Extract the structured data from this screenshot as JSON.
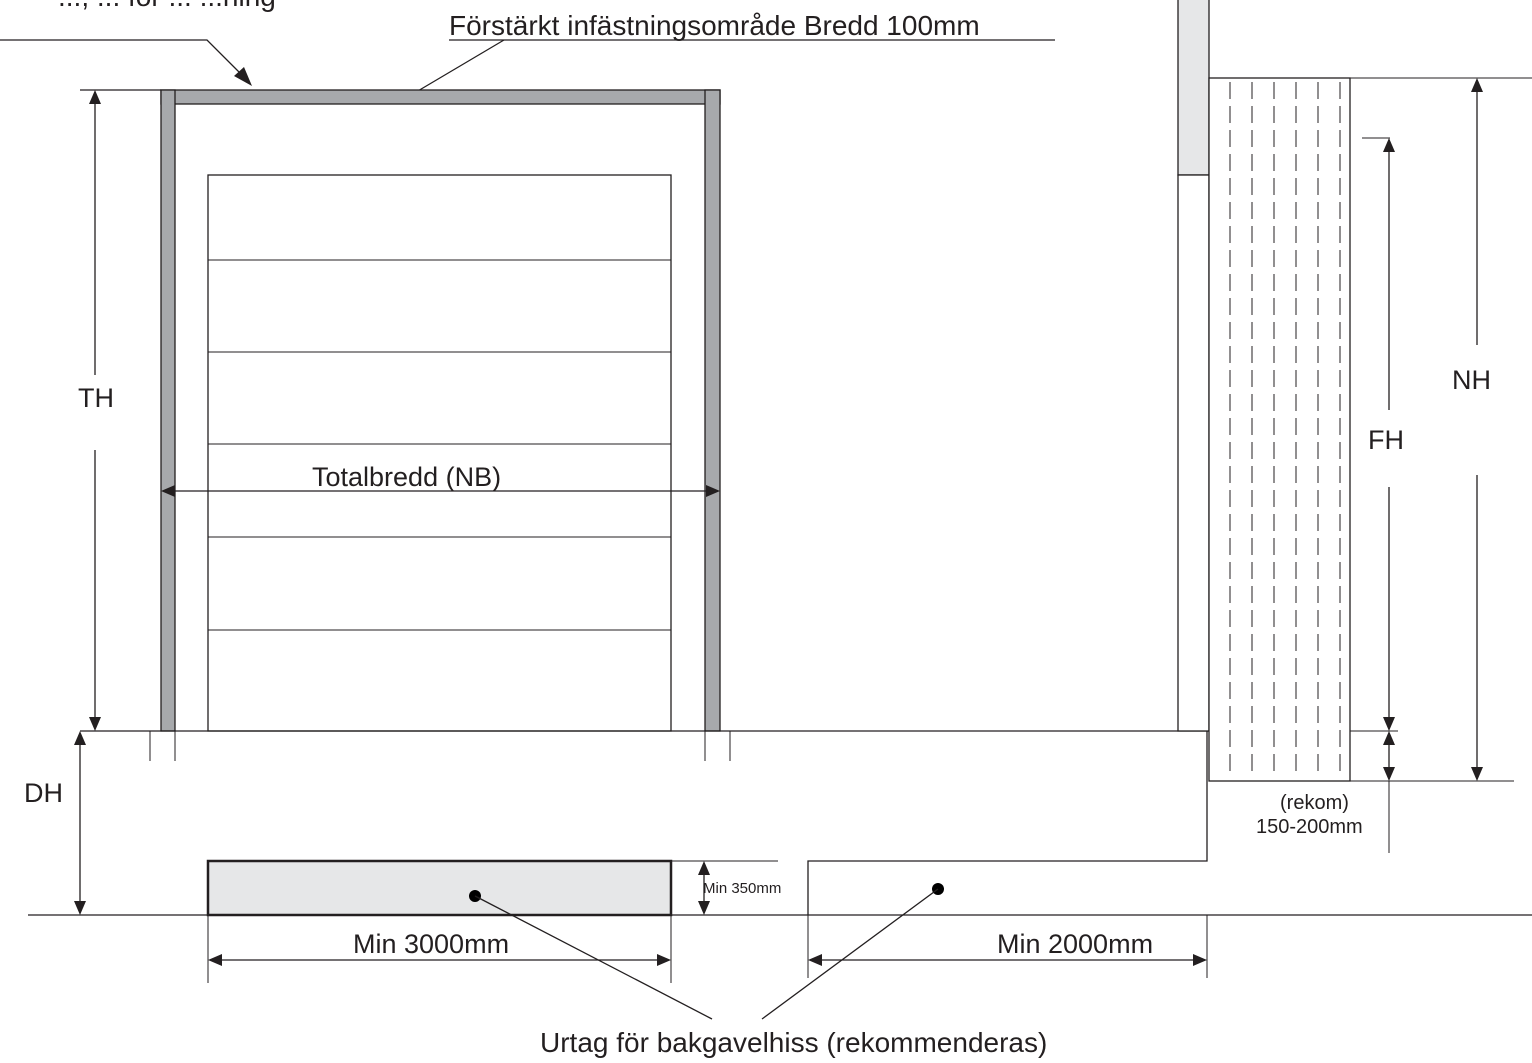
{
  "labels": {
    "top_cut": "..., ... för ... ...ning",
    "reinforced_area": "Förstärkt infästningsområde Bredd 100mm",
    "th": "TH",
    "total_width": "Totalbredd (NB)",
    "nh": "NH",
    "fh": "FH",
    "dh": "DH",
    "min_350": "Min 350mm",
    "min_3000": "Min 3000mm",
    "min_2000": "Min 2000mm",
    "rekom": "(rekom)",
    "rekom_range": "150-200mm",
    "recess_note": "Urtag för bakgavelhiss (rekommenderas)"
  },
  "colors": {
    "line": "#231f20",
    "frame": "#a7a9ac",
    "fill_light": "#e6e7e8"
  }
}
